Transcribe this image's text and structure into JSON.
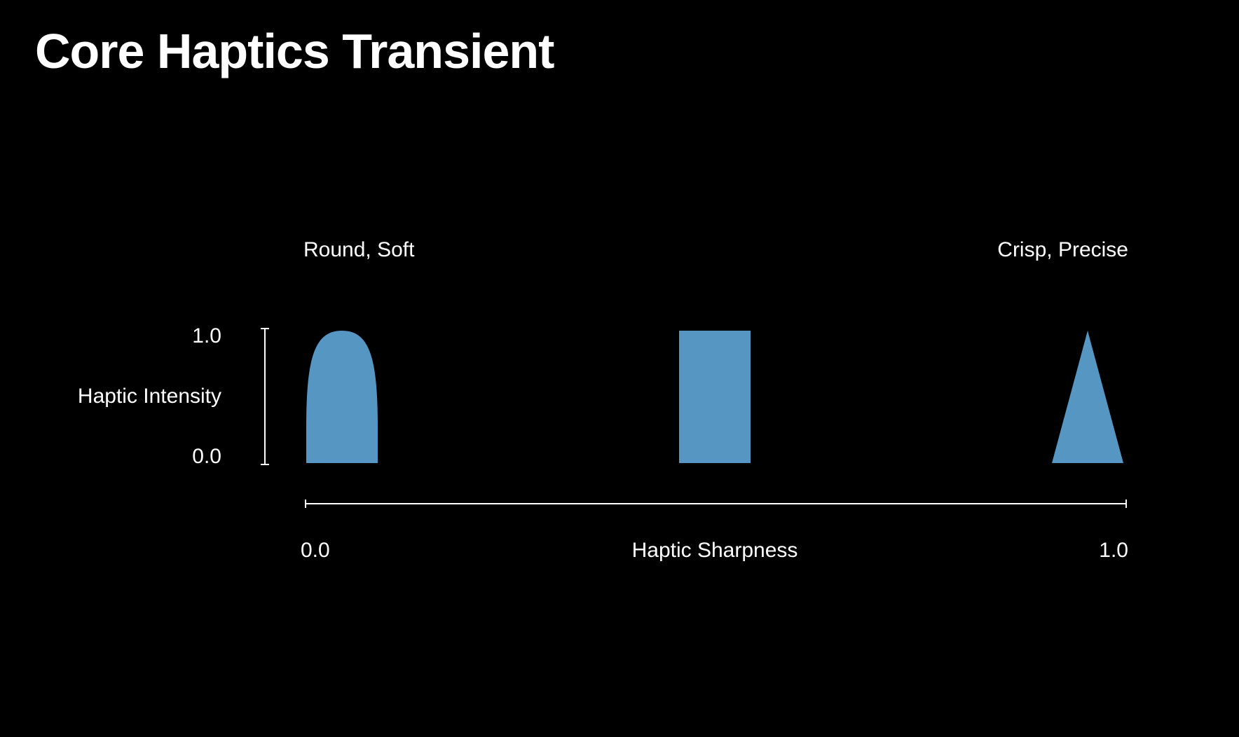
{
  "slide": {
    "title": "Core Haptics Transient"
  },
  "labels": {
    "soft_end": "Round, Soft",
    "crisp_end": "Crisp, Precise",
    "intensity_axis": "Haptic Intensity",
    "intensity_max": "1.0",
    "intensity_min": "0.0",
    "sharpness_axis": "Haptic Sharpness",
    "sharpness_min": "0.0",
    "sharpness_max": "1.0"
  },
  "transients": [
    {
      "shape": "round",
      "sharpness": 0.0,
      "intensity": 1.0
    },
    {
      "shape": "rectangle",
      "sharpness": 0.5,
      "intensity": 1.0
    },
    {
      "shape": "triangle",
      "sharpness": 1.0,
      "intensity": 1.0
    }
  ],
  "colors": {
    "background": "#000000",
    "foreground": "#ffffff",
    "waveform": "#5596c2"
  }
}
